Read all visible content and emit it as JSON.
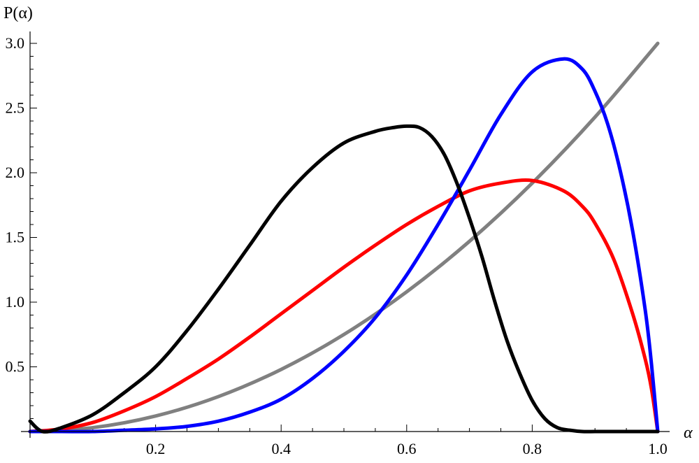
{
  "chart_data": {
    "type": "line",
    "title": "",
    "xlabel": "α",
    "ylabel": "P(α)",
    "xlim": [
      0,
      1
    ],
    "ylim": [
      0,
      3
    ],
    "x_ticks": [
      0.2,
      0.4,
      0.6,
      0.8,
      1.0
    ],
    "x_tick_labels": [
      "0.2",
      "0.4",
      "0.6",
      "0.8",
      "1.0"
    ],
    "y_ticks": [
      0.5,
      1.0,
      1.5,
      2.0,
      2.5,
      3.0
    ],
    "y_tick_labels": [
      "0.5",
      "1.0",
      "1.5",
      "2.0",
      "2.5",
      "3.0"
    ],
    "grid": false,
    "series": [
      {
        "color": "#000000",
        "x": [
          0.0,
          0.02,
          0.05,
          0.1,
          0.15,
          0.2,
          0.25,
          0.3,
          0.35,
          0.4,
          0.45,
          0.5,
          0.55,
          0.58,
          0.6,
          0.62,
          0.64,
          0.66,
          0.68,
          0.7,
          0.72,
          0.74,
          0.76,
          0.78,
          0.8,
          0.82,
          0.84,
          0.86,
          0.88,
          0.9,
          0.92,
          1.0
        ],
        "y": [
          0.08,
          0.0,
          0.03,
          0.13,
          0.3,
          0.5,
          0.78,
          1.1,
          1.44,
          1.78,
          2.04,
          2.23,
          2.32,
          2.35,
          2.36,
          2.35,
          2.28,
          2.14,
          1.92,
          1.65,
          1.35,
          1.01,
          0.7,
          0.45,
          0.24,
          0.1,
          0.03,
          0.01,
          0.0,
          0.0,
          0.0,
          0.0
        ]
      },
      {
        "color": "#ff0000",
        "x": [
          0.0,
          0.05,
          0.1,
          0.15,
          0.2,
          0.25,
          0.3,
          0.35,
          0.4,
          0.45,
          0.5,
          0.55,
          0.6,
          0.65,
          0.7,
          0.75,
          0.8,
          0.85,
          0.88,
          0.9,
          0.93,
          0.96,
          0.98,
          0.99,
          1.0
        ],
        "y": [
          0.0,
          0.02,
          0.07,
          0.16,
          0.27,
          0.41,
          0.56,
          0.73,
          0.91,
          1.09,
          1.27,
          1.44,
          1.6,
          1.74,
          1.86,
          1.92,
          1.94,
          1.86,
          1.74,
          1.61,
          1.33,
          0.91,
          0.56,
          0.33,
          0.0
        ]
      },
      {
        "color": "#0000ff",
        "x": [
          0.0,
          0.05,
          0.1,
          0.15,
          0.2,
          0.25,
          0.3,
          0.35,
          0.4,
          0.45,
          0.5,
          0.55,
          0.6,
          0.65,
          0.7,
          0.75,
          0.8,
          0.85,
          0.88,
          0.9,
          0.92,
          0.94,
          0.96,
          0.98,
          0.99,
          1.0
        ],
        "y": [
          0.0,
          0.0,
          0.0,
          0.01,
          0.02,
          0.04,
          0.08,
          0.15,
          0.25,
          0.41,
          0.62,
          0.88,
          1.21,
          1.6,
          2.02,
          2.45,
          2.78,
          2.88,
          2.8,
          2.63,
          2.38,
          2.02,
          1.55,
          0.94,
          0.52,
          0.0
        ]
      },
      {
        "color": "#808080",
        "x": [
          0.0,
          0.1,
          0.2,
          0.3,
          0.4,
          0.5,
          0.6,
          0.7,
          0.8,
          0.9,
          1.0
        ],
        "y": [
          0.0,
          0.03,
          0.12,
          0.27,
          0.48,
          0.75,
          1.08,
          1.47,
          1.92,
          2.43,
          3.0
        ]
      }
    ]
  }
}
